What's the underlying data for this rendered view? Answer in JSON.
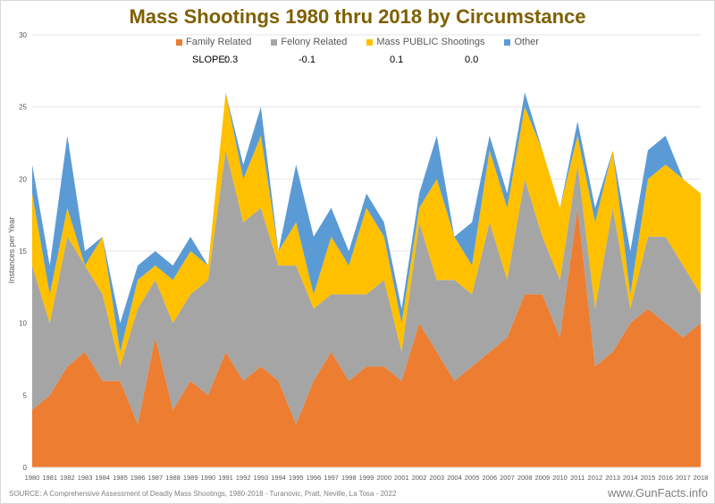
{
  "chart_data": {
    "type": "area",
    "stacked": true,
    "title": "Mass Shootings 1980 thru 2018 by Circumstance",
    "xlabel": "",
    "ylabel": "Instances per Year",
    "ylim": [
      0,
      30
    ],
    "yticks": [
      0,
      5,
      10,
      15,
      20,
      25,
      30
    ],
    "grid": true,
    "legend_position": "top",
    "categories": [
      "1980",
      "1981",
      "1982",
      "1983",
      "1984",
      "1985",
      "1986",
      "1987",
      "1988",
      "1989",
      "1990",
      "1991",
      "1992",
      "1993",
      "1994",
      "1995",
      "1996",
      "1997",
      "1998",
      "1999",
      "2000",
      "2001",
      "2002",
      "2003",
      "2004",
      "2005",
      "2006",
      "2007",
      "2008",
      "2009",
      "2010",
      "2011",
      "2012",
      "2013",
      "2014",
      "2015",
      "2016",
      "2017",
      "2018"
    ],
    "series": [
      {
        "name": "Family Related",
        "color": "#ed7d31",
        "values": [
          4,
          5,
          7,
          8,
          6,
          6,
          3,
          9,
          4,
          6,
          5,
          8,
          6,
          7,
          6,
          3,
          6,
          8,
          6,
          7,
          7,
          6,
          10,
          8,
          6,
          7,
          8,
          9,
          12,
          12,
          9,
          18,
          7,
          8,
          10,
          11,
          10,
          9,
          10
        ]
      },
      {
        "name": "Felony Related",
        "color": "#a5a5a5",
        "values": [
          10,
          5,
          9,
          6,
          6,
          1,
          8,
          4,
          6,
          6,
          8,
          14,
          11,
          11,
          8,
          11,
          5,
          4,
          6,
          5,
          6,
          2,
          7,
          5,
          7,
          5,
          9,
          4,
          8,
          4,
          4,
          3,
          4,
          10,
          1,
          5,
          6,
          5,
          2
        ]
      },
      {
        "name": "Mass PUBLIC Shootings",
        "color": "#ffc000",
        "values": [
          5,
          2,
          2,
          0,
          4,
          1,
          2,
          1,
          3,
          3,
          1,
          4,
          3,
          5,
          1,
          3,
          1,
          4,
          2,
          6,
          3,
          2,
          1,
          7,
          3,
          2,
          5,
          5,
          5,
          6,
          5,
          2,
          6,
          4,
          1,
          4,
          5,
          6,
          7
        ]
      },
      {
        "name": "Other",
        "color": "#5b9bd5",
        "values": [
          2,
          2,
          5,
          1,
          0,
          2,
          1,
          1,
          1,
          1,
          0,
          0,
          1,
          2,
          0,
          4,
          4,
          2,
          1,
          1,
          1,
          1,
          1,
          3,
          0,
          3,
          1,
          1,
          1,
          0,
          0,
          1,
          1,
          0,
          3,
          2,
          2,
          0,
          0
        ]
      }
    ],
    "annotations": {
      "slope_label": "SLOPE:",
      "slopes": [
        "0.3",
        "-0.1",
        "0.1",
        "0.0"
      ]
    }
  },
  "footer": {
    "source": "SOURCE: A Comprehensive Assessment of Deadly Mass Shootings, 1980-2018 - Turanovic, Pratt, Neville, La Tosa - 2022",
    "site": "www.GunFacts.info"
  }
}
